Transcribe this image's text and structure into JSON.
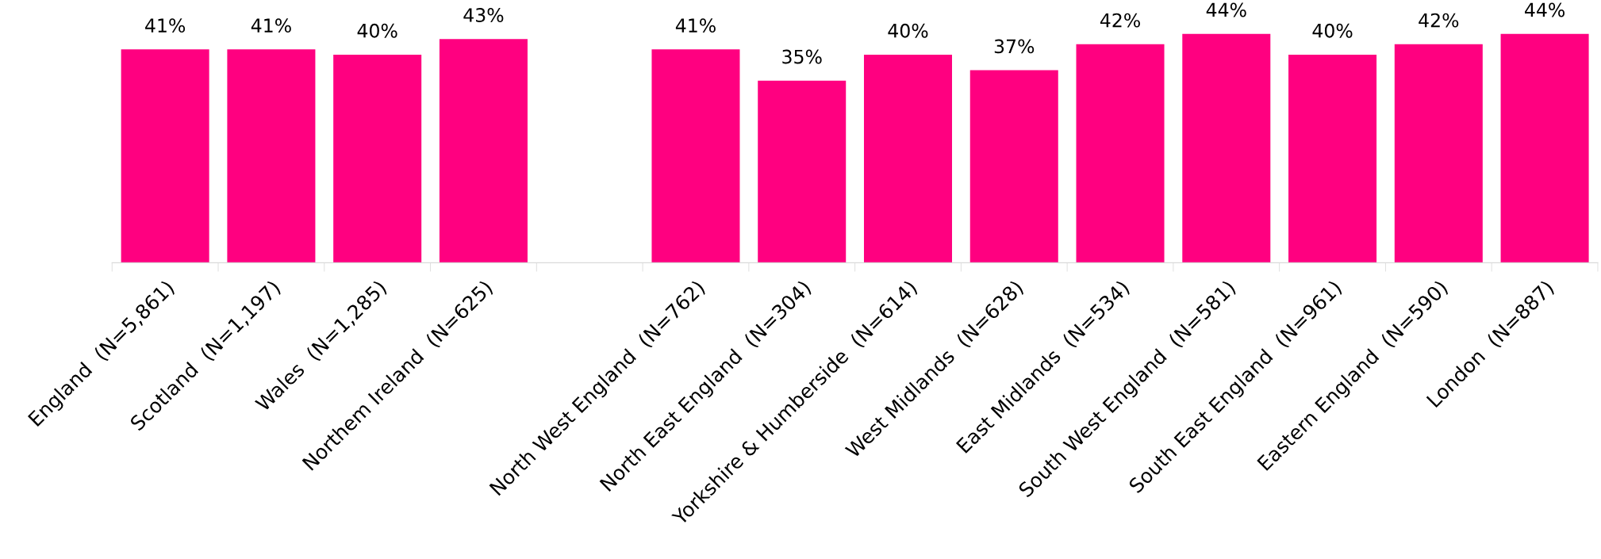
{
  "chart_data": {
    "type": "bar",
    "categories": [
      "England  (N=5,861)",
      "Scotland  (N=1,197)",
      "Wales  (N=1,285)",
      "Northem Ireland  (N=625)",
      null,
      "North West England  (N=762)",
      "North East England  (N=304)",
      "Yorkshire & Humberside  (N=614)",
      "West Midlands  (N=628)",
      "East Midlands  (N=534)",
      "South West England  (N=581)",
      "South East England  (N=961)",
      "Eastern England  (N=590)",
      "London  (N=887)"
    ],
    "values": [
      41,
      41,
      40,
      43,
      null,
      41,
      35,
      40,
      37,
      42,
      44,
      40,
      42,
      44
    ],
    "value_labels": [
      "41%",
      "41%",
      "40%",
      "43%",
      null,
      "41%",
      "35%",
      "40%",
      "37%",
      "42%",
      "44%",
      "40%",
      "42%",
      "44%"
    ],
    "color": "#ff0080",
    "grid": false,
    "legend": false
  }
}
